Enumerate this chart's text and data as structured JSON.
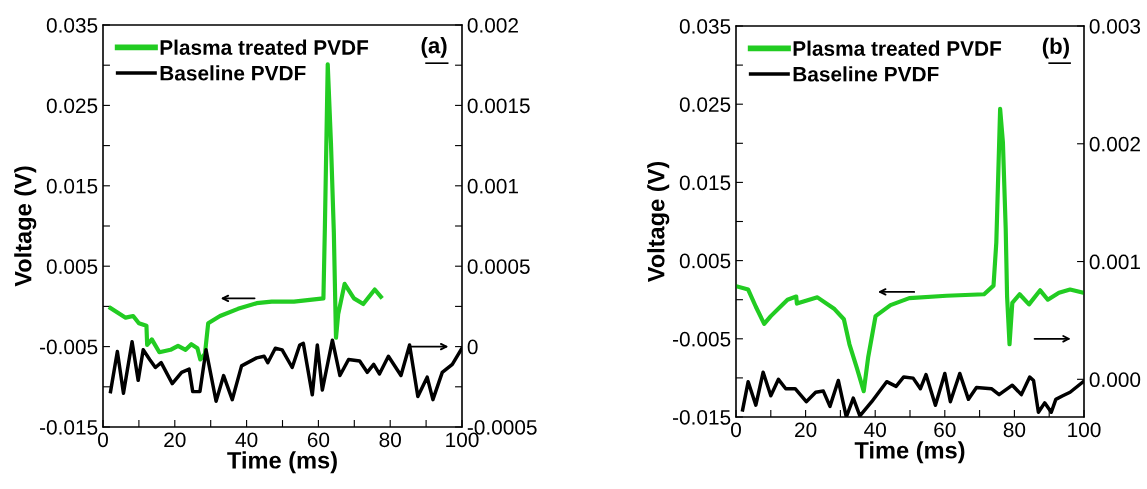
{
  "chart_data": [
    {
      "type": "line",
      "xlabel": "Time (ms)",
      "ylabel": "Voltage (V)",
      "annotations": [
        "(a)"
      ],
      "legend": "top left",
      "grid": false,
      "xlim": [
        0,
        100
      ],
      "xticks": [
        0,
        {
          "value": 10,
          "label": null
        },
        20,
        {
          "value": 30,
          "label": null
        },
        40,
        {
          "value": 50,
          "label": null
        },
        60,
        {
          "value": 70,
          "label": null
        },
        80,
        {
          "value": 90,
          "label": null
        },
        100
      ],
      "ylim": [
        -0.015,
        0.035
      ],
      "yticks": [
        -0.015,
        {
          "value": -0.01,
          "label": null
        },
        -0.005,
        {
          "value": 0,
          "label": null
        },
        0.005,
        {
          "value": 0.01,
          "label": null
        },
        0.015,
        {
          "value": 0.02,
          "label": null
        },
        0.025,
        {
          "value": 0.03,
          "label": null
        },
        0.035
      ],
      "y2lim": [
        -0.0005,
        0.002
      ],
      "y2ticks": [
        -0.0005,
        {
          "value": -0.00025,
          "label": null
        },
        {
          "value": 0,
          "label": "0"
        },
        {
          "value": 0.00025,
          "label": null
        },
        0.0005,
        {
          "value": 0.00075,
          "label": null
        },
        0.001,
        {
          "value": 0.00125,
          "label": null
        },
        0.0015,
        {
          "value": 0.00175,
          "label": null
        },
        0.002
      ],
      "series": [
        {
          "name": "Plasma treated PVDF",
          "color": "#22cc22",
          "x": [
            2.1,
            6.3,
            8.4,
            10,
            12.1,
            12.3,
            13.6,
            15.7,
            18.8,
            20.9,
            23,
            24.6,
            26.3,
            27.1,
            28.4,
            29.3,
            32.6,
            37.6,
            42.8,
            47,
            53.2,
            59.5,
            61.4,
            61.8,
            62.6,
            63.5,
            64.3,
            64.9,
            65.5,
            67.3,
            69.9,
            72.5,
            75.7,
            77.4
          ],
          "values": [
            -0.0002,
            -0.0014,
            -0.0012,
            -0.0021,
            -0.0024,
            -0.0048,
            -0.0041,
            -0.0057,
            -0.0054,
            -0.0049,
            -0.0054,
            -0.0047,
            -0.0052,
            -0.0066,
            -0.0059,
            -0.0021,
            -0.0012,
            -0.0003,
            0.0004,
            0.0006,
            0.0006,
            0.0009,
            0.001,
            0.0097,
            0.0301,
            0.0203,
            0.0092,
            -0.0039,
            -0.001,
            0.0028,
            0.001,
            0.0003,
            0.0021,
            0.0012
          ]
        },
        {
          "name": "Baseline PVDF",
          "color": "#000000",
          "axis": "y2",
          "x": [
            2.1,
            4,
            5.7,
            8.1,
            9.8,
            11.2,
            13,
            14.6,
            16.2,
            19.3,
            21.9,
            24,
            25,
            27,
            28.7,
            31.5,
            33.6,
            36,
            38.6,
            42.8,
            44.9,
            45.9,
            48,
            49.9,
            52.7,
            54.8,
            55.8,
            58.3,
            59.7,
            61.1,
            63.9,
            66,
            68.4,
            71.5,
            73.6,
            75.4,
            77,
            79.5,
            83,
            85.4,
            87.7,
            90.3,
            91.9,
            94.5,
            97.3,
            100
          ],
          "values": [
            -0.00028,
            -3e-05,
            -0.00029,
            3e-05,
            -0.00021,
            -2e-05,
            -8e-05,
            -0.00013,
            -0.0001,
            -0.00023,
            -0.00016,
            -0.00014,
            -0.00028,
            -0.00028,
            -2e-05,
            -0.00034,
            -0.00018,
            -0.00033,
            -0.00012,
            -7e-05,
            -6e-05,
            -0.0001,
            -1e-05,
            -2e-05,
            -0.00013,
            1e-05,
            2e-05,
            -0.0003,
            1e-05,
            -0.00027,
            4e-05,
            -0.00018,
            -8e-05,
            -9e-05,
            -0.00016,
            -0.00011,
            -0.00017,
            -6e-05,
            -0.00018,
            1e-05,
            -0.00031,
            -0.00019,
            -0.00033,
            -0.00016,
            -0.00011,
            -1e-05
          ]
        }
      ]
    },
    {
      "type": "line",
      "xlabel": "Time (ms)",
      "ylabel": "Voltage (V)",
      "annotations": [
        "(b)"
      ],
      "legend": "top left",
      "grid": false,
      "xlim": [
        0,
        100
      ],
      "xticks": [
        0,
        {
          "value": 10,
          "label": null
        },
        20,
        {
          "value": 30,
          "label": null
        },
        40,
        {
          "value": 50,
          "label": null
        },
        60,
        {
          "value": 70,
          "label": null
        },
        80,
        {
          "value": 90,
          "label": null
        },
        100
      ],
      "ylim": [
        -0.015,
        0.035
      ],
      "yticks": [
        -0.015,
        {
          "value": -0.01,
          "label": null
        },
        -0.005,
        {
          "value": 0,
          "label": null
        },
        0.005,
        {
          "value": 0.01,
          "label": null
        },
        0.015,
        {
          "value": 0.02,
          "label": null
        },
        0.025,
        {
          "value": 0.03,
          "label": null
        },
        0.035
      ],
      "y2lim": [
        -0.00032,
        0.003
      ],
      "y2ticks": [
        {
          "value": 0,
          "label": "0.000"
        },
        0.001,
        0.002,
        0.003
      ],
      "series": [
        {
          "name": "Plasma treated PVDF",
          "color": "#22cc22",
          "x": [
            0.3,
            3.5,
            5.7,
            8.1,
            10,
            14.8,
            17.3,
            17.5,
            23.4,
            28.3,
            31,
            32.6,
            34.7,
            36.7,
            38,
            40.1,
            44.4,
            49.8,
            60.5,
            71.3,
            74,
            74.8,
            75.9,
            76.7,
            77.5,
            77.9,
            78.6,
            79.4,
            81.5,
            84.2,
            87.4,
            89.6,
            92.8,
            96,
            99.7
          ],
          "values": [
            0.0017,
            0.0013,
            -0.0009,
            -0.0031,
            -0.0021,
            0.0,
            0.0004,
            -0.0005,
            0.0003,
            -0.0012,
            -0.0025,
            -0.0057,
            -0.0087,
            -0.0117,
            -0.0073,
            -0.0021,
            -0.0007,
            0.0002,
            0.0005,
            0.0007,
            0.0018,
            0.0073,
            0.0244,
            0.0201,
            0.0091,
            0.0004,
            -0.0057,
            -0.0004,
            0.0007,
            -0.0006,
            0.0012,
            0.0,
            0.0009,
            0.0013,
            0.0009
          ]
        },
        {
          "name": "Baseline PVDF",
          "color": "#000000",
          "axis": "y2",
          "x": [
            1.9,
            3.5,
            5.7,
            7.8,
            10,
            12.2,
            14.3,
            17,
            20.2,
            22.9,
            25.1,
            27,
            29.4,
            31.7,
            33.7,
            35.6,
            39,
            43.3,
            46,
            48.2,
            50.9,
            53,
            54.6,
            57.3,
            60,
            61.6,
            64.3,
            66.8,
            69.1,
            73.4,
            75.6,
            79.4,
            82,
            84.4,
            85.5,
            86.9,
            88.7,
            90.6,
            91.9,
            93.9,
            96,
            99.8
          ],
          "values": [
            -0.00026,
            -2e-05,
            -0.00022,
            6e-05,
            -0.00014,
            0.0,
            -8e-05,
            -8e-05,
            -0.00019,
            -0.00011,
            -0.0001,
            -0.00023,
            -1e-05,
            -0.00032,
            -0.00016,
            -0.00031,
            -0.00019,
            -2e-05,
            -6e-05,
            2e-05,
            1e-05,
            -8e-05,
            4e-05,
            -0.00022,
            5e-05,
            -0.00019,
            5e-05,
            -0.00017,
            -7e-05,
            -8e-05,
            -0.00013,
            -5e-05,
            -0.00013,
            2e-05,
            -1e-05,
            -0.00028,
            -0.0002,
            -0.00028,
            -0.00017,
            -0.00014,
            -0.00011,
            -2e-05
          ]
        }
      ]
    }
  ]
}
